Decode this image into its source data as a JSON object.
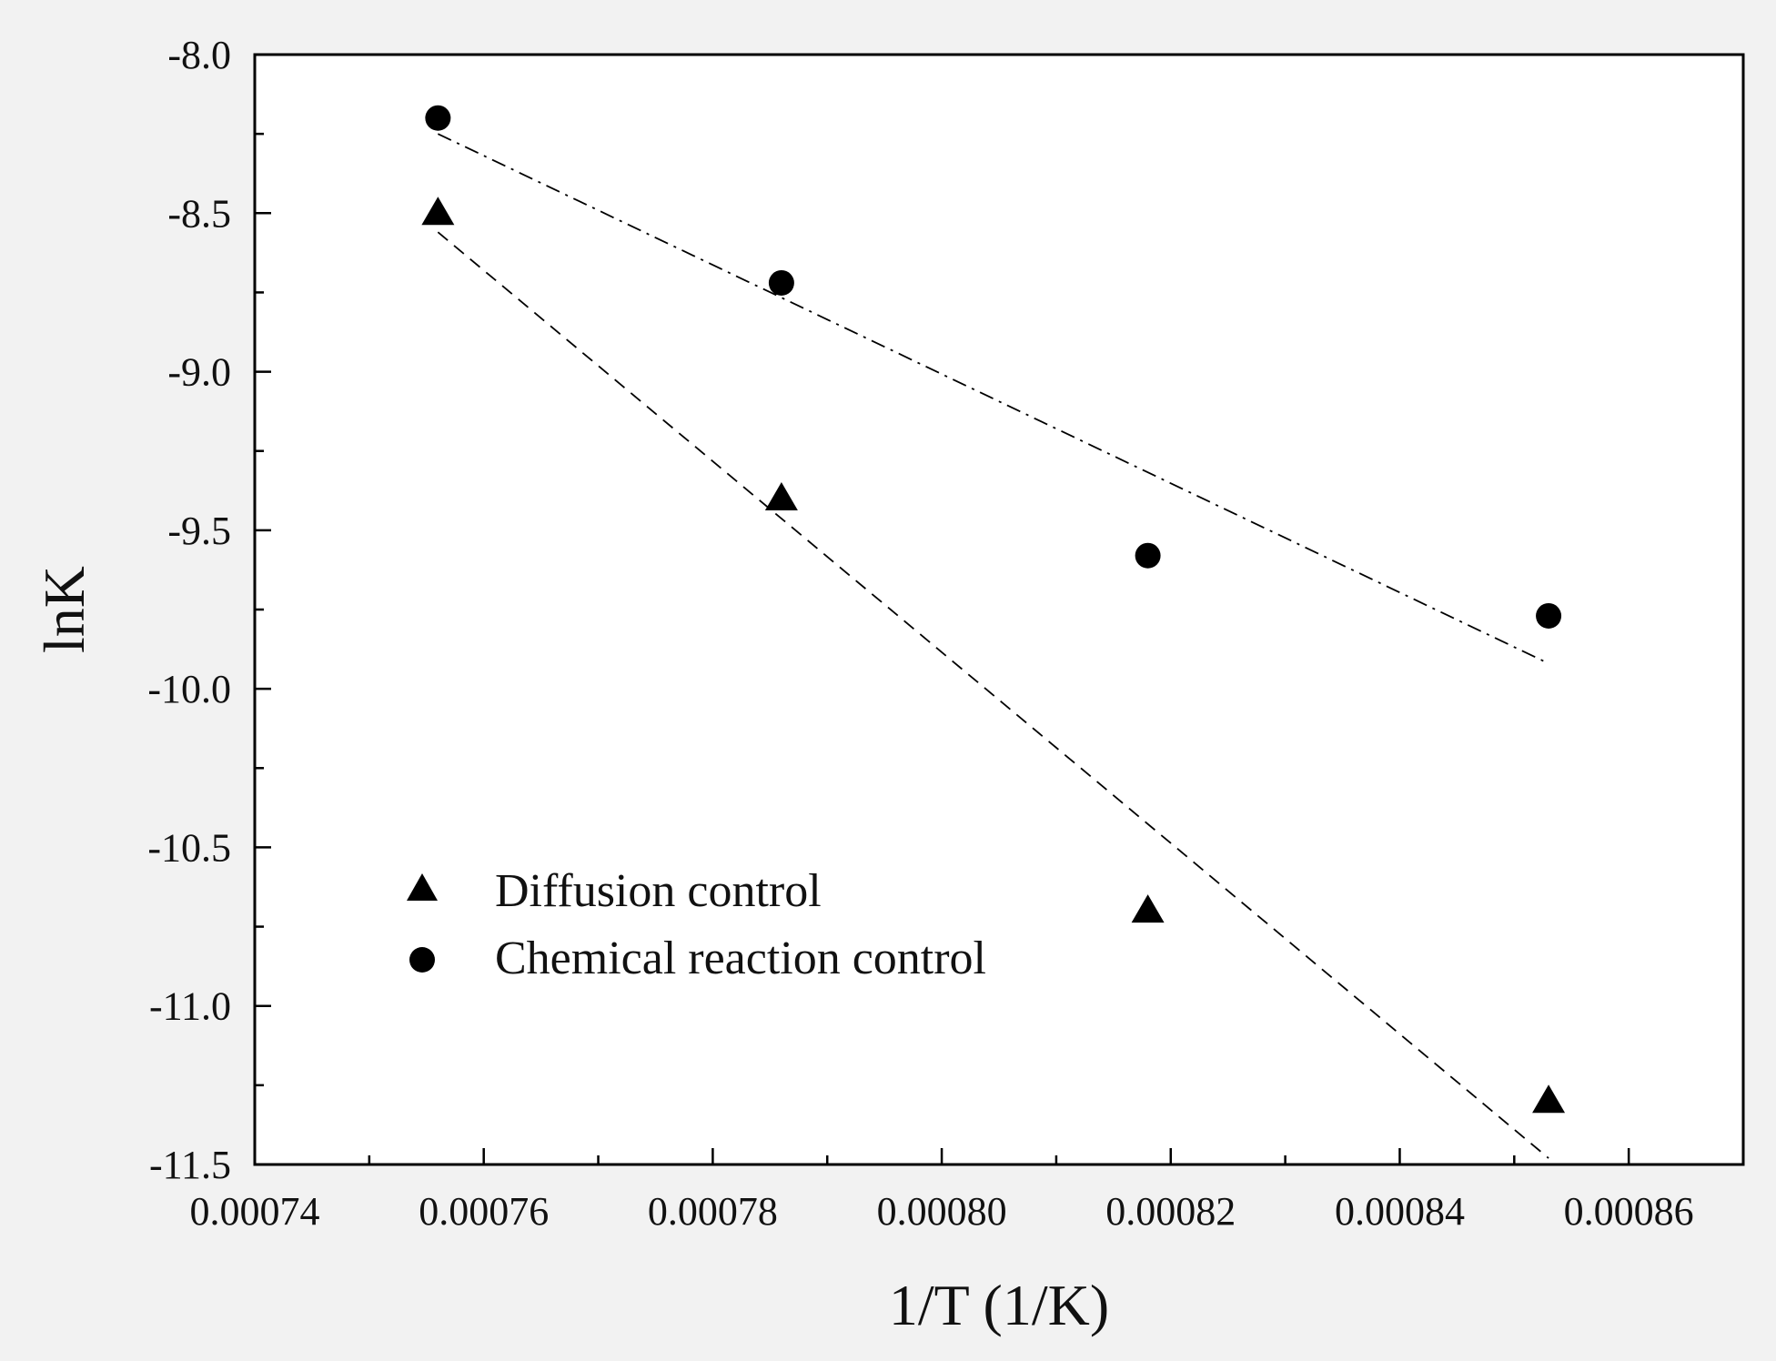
{
  "chart_data": {
    "type": "scatter",
    "title": "",
    "xlabel": "1/T (1/K)",
    "ylabel": "lnK",
    "xlim": [
      0.00074,
      0.00087
    ],
    "ylim": [
      -11.5,
      -8.0
    ],
    "xticks": [
      "0.00074",
      "0.00076",
      "0.00078",
      "0.00080",
      "0.00082",
      "0.00084",
      "0.00086"
    ],
    "yticks": [
      "-8.0",
      "-8.5",
      "-9.0",
      "-9.5",
      "-10.0",
      "-10.5",
      "-11.0",
      "-11.5"
    ],
    "grid": false,
    "legend_position": "bottom-left",
    "series": [
      {
        "name": "Diffusion control",
        "marker": "triangle",
        "line_style": "dashed",
        "x": [
          0.000756,
          0.000786,
          0.000818,
          0.000853
        ],
        "y": [
          -8.5,
          -9.4,
          -10.7,
          -11.3
        ],
        "fit": {
          "x": [
            0.000756,
            0.000853
          ],
          "y": [
            -8.56,
            -11.48
          ]
        }
      },
      {
        "name": "Chemical reaction control",
        "marker": "circle",
        "line_style": "dash-dot",
        "x": [
          0.000756,
          0.000786,
          0.000818,
          0.000853
        ],
        "y": [
          -8.2,
          -8.72,
          -9.58,
          -9.77
        ],
        "fit": {
          "x": [
            0.000756,
            0.000853
          ],
          "y": [
            -8.25,
            -9.92
          ]
        }
      }
    ]
  }
}
